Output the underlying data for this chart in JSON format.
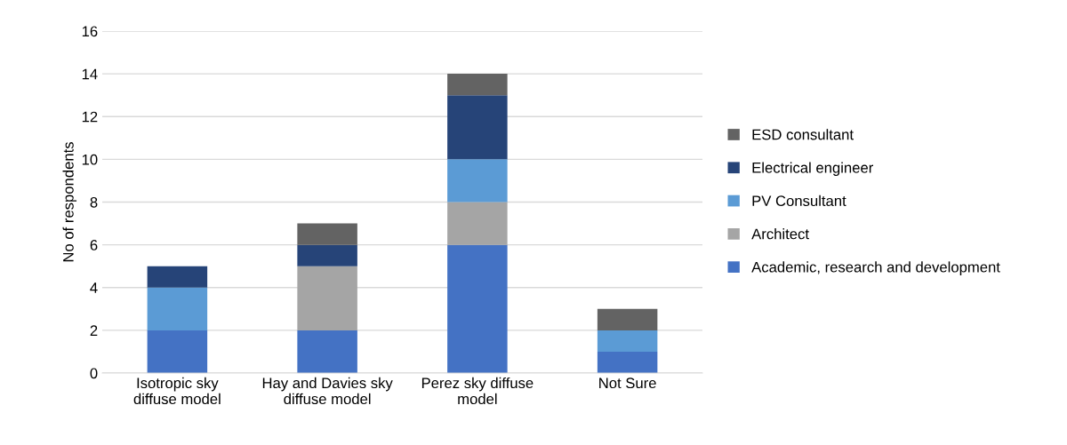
{
  "chart_data": {
    "type": "bar",
    "stacked": true,
    "ylabel": "No of respondents",
    "categories": [
      "Isotropic sky\ndiffuse model",
      "Hay and Davies sky\ndiffuse model",
      "Perez sky diffuse\nmodel",
      "Not Sure"
    ],
    "series": [
      {
        "name": "Academic, research and development",
        "color": "#4472c4",
        "values": [
          2,
          2,
          6,
          1
        ]
      },
      {
        "name": "Architect",
        "color": "#a5a5a5",
        "values": [
          0,
          3,
          2,
          0
        ]
      },
      {
        "name": "PV Consultant",
        "color": "#5b9bd5",
        "values": [
          2,
          0,
          2,
          1
        ]
      },
      {
        "name": "Electrical engineer",
        "color": "#264478",
        "values": [
          1,
          1,
          3,
          0
        ]
      },
      {
        "name": "ESD consultant",
        "color": "#636363",
        "values": [
          0,
          1,
          1,
          1
        ]
      }
    ],
    "ylim": [
      0,
      16
    ],
    "yticks": [
      0,
      2,
      4,
      6,
      8,
      10,
      12,
      14,
      16
    ],
    "grid": "y",
    "legend": "right"
  }
}
